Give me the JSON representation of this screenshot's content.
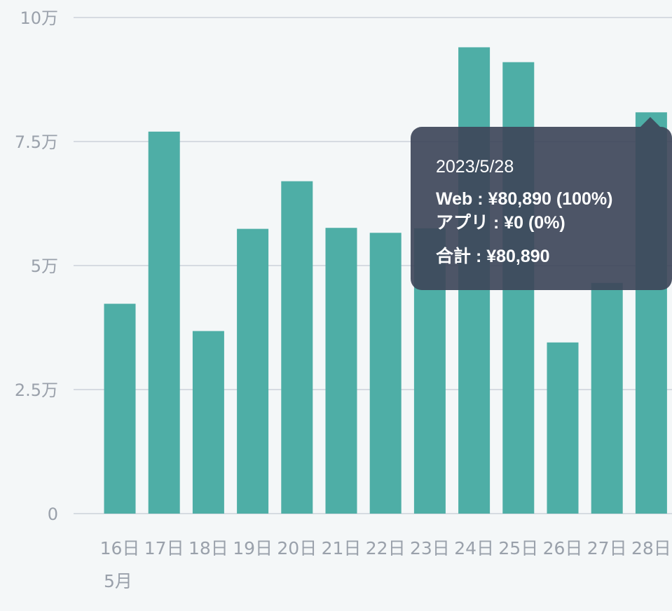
{
  "chart_data": {
    "type": "bar",
    "categories": [
      "16日",
      "17日",
      "18日",
      "19日",
      "20日",
      "21日",
      "22日",
      "23日",
      "24日",
      "25日",
      "26日",
      "27日",
      "28日"
    ],
    "values": [
      42300,
      77000,
      36800,
      57400,
      67000,
      57600,
      56600,
      57500,
      94000,
      91000,
      34500,
      46500,
      80890
    ],
    "ylim": [
      0,
      100000
    ],
    "yticks": [
      {
        "value": 0,
        "label": "0"
      },
      {
        "value": 25000,
        "label": "2.5万"
      },
      {
        "value": 50000,
        "label": "5万"
      },
      {
        "value": 75000,
        "label": "7.5万"
      },
      {
        "value": 100000,
        "label": "10万"
      }
    ],
    "month_label": "5月",
    "grid": true,
    "bar_color": "#4eaea6",
    "title": "",
    "xlabel": "",
    "ylabel": ""
  },
  "tooltip": {
    "date": "2023/5/28",
    "web_line": "Web : ¥80,890 (100%)",
    "app_line": "アプリ : ¥0 (0%)",
    "total_line": "合計 : ¥80,890"
  }
}
